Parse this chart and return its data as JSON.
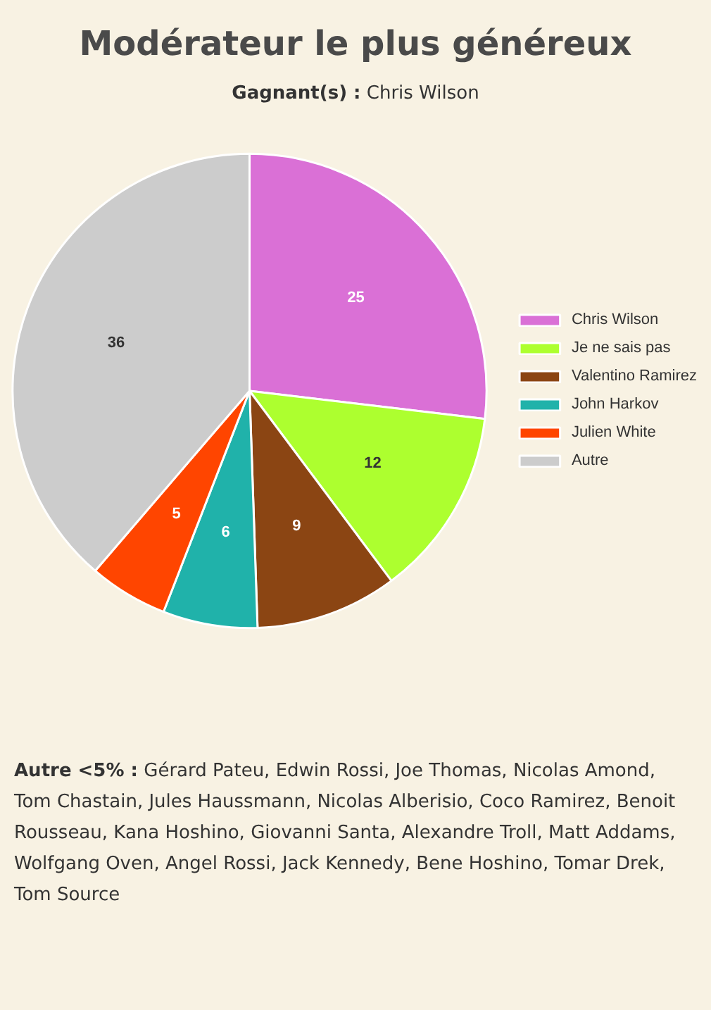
{
  "chart_data": {
    "type": "pie",
    "title": "Modérateur le plus généreux",
    "subtitle": "Gagnant(s) : Chris Wilson",
    "categories": [
      "Chris Wilson",
      "Je ne sais pas",
      "Valentino Ramirez",
      "John Harkov",
      "Julien White",
      "Autre"
    ],
    "values": [
      25,
      12,
      9,
      6,
      5,
      36
    ],
    "colors": [
      "#da70d6",
      "#adff2f",
      "#8b4513",
      "#20b2aa",
      "#ff4500",
      "#cccccc"
    ],
    "data_labels": true,
    "legend": "right",
    "annotations": [
      "Autre <5% : Gérard Pateu, Edwin Rossi, Joe Thomas, Nicolas Amond, Tom Chastain, Jules Haussmann, Nicolas Alberisio, Coco Ramirez, Benoit Rousseau, Kana Hoshino, Giovanni Santa, Alexandre Troll, Matt Addams, Wolfgang Oven, Angel Rossi, Jack Kennedy, Bene Hoshino, Tomar Drek, Tom Source"
    ]
  }
}
